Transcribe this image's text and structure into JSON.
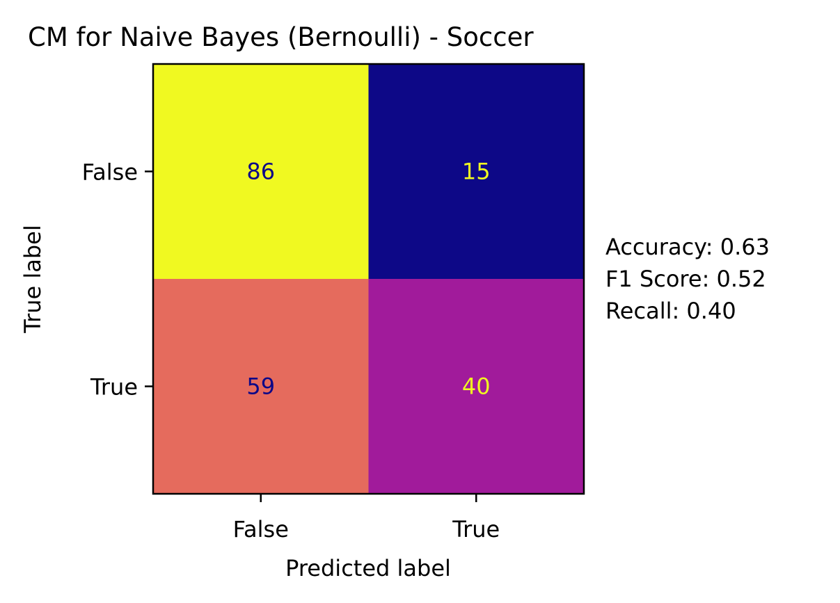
{
  "chart_data": {
    "type": "heatmap",
    "title": "CM for Naive Bayes (Bernoulli) - Soccer",
    "xlabel": "Predicted label",
    "ylabel": "True label",
    "x_categories": [
      "False",
      "True"
    ],
    "y_categories": [
      "False",
      "True"
    ],
    "matrix": [
      [
        86,
        15
      ],
      [
        59,
        40
      ]
    ],
    "colormap": "plasma",
    "value_range": [
      15,
      86
    ],
    "cell_colors": [
      [
        "#f0f921",
        "#0d0887"
      ],
      [
        "#e56b5d",
        "#a11b9b"
      ]
    ],
    "cell_text_colors": [
      [
        "#0d0887",
        "#f0f921"
      ],
      [
        "#0d0887",
        "#f0f921"
      ]
    ],
    "grid": false,
    "metrics": [
      "Accuracy: 0.63",
      "F1 Score: 0.52",
      "Recall: 0.40"
    ]
  }
}
